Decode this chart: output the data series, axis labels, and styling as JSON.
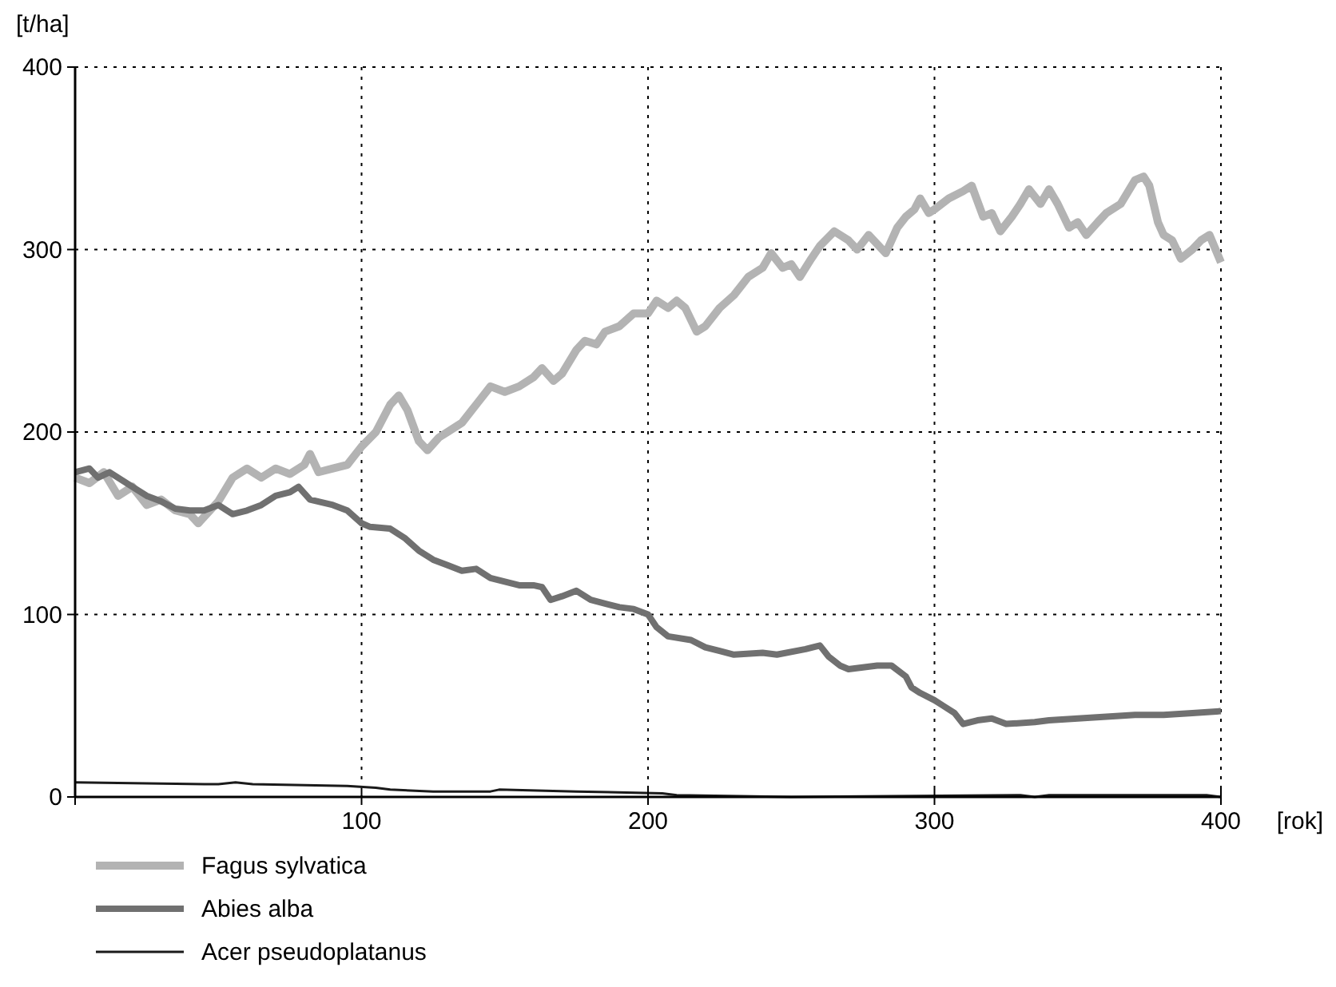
{
  "chart_data": {
    "type": "line",
    "xlabel": "[rok]",
    "ylabel": "[t/ha]",
    "xlim": [
      0,
      400
    ],
    "ylim": [
      0,
      400
    ],
    "xticks": [
      {
        "value": 0,
        "label": null
      },
      100,
      200,
      300,
      400
    ],
    "yticks": [
      0,
      100,
      200,
      300,
      400
    ],
    "grid": true,
    "legend": "bottom",
    "line_style": "solid",
    "marker": "none",
    "series": [
      {
        "name": "Fagus sylvatica",
        "color": "#b3b3b3",
        "x": [
          0,
          5,
          10,
          15,
          20,
          25,
          30,
          35,
          40,
          43,
          50,
          55,
          60,
          65,
          70,
          75,
          80,
          82,
          85,
          90,
          95,
          100,
          105,
          110,
          113,
          116,
          120,
          123,
          127,
          130,
          135,
          140,
          145,
          150,
          155,
          160,
          163,
          167,
          170,
          175,
          178,
          182,
          185,
          190,
          195,
          200,
          203,
          207,
          210,
          213,
          217,
          220,
          225,
          230,
          235,
          240,
          243,
          247,
          250,
          253,
          257,
          260,
          265,
          270,
          273,
          277,
          280,
          283,
          287,
          290,
          293,
          295,
          298,
          300,
          305,
          310,
          313,
          317,
          320,
          323,
          327,
          330,
          333,
          337,
          340,
          343,
          347,
          350,
          353,
          357,
          360,
          365,
          370,
          373,
          375,
          378,
          380,
          383,
          386,
          390,
          393,
          396,
          400
        ],
        "values": [
          175,
          172,
          178,
          165,
          170,
          160,
          163,
          157,
          155,
          150,
          162,
          175,
          180,
          175,
          180,
          177,
          182,
          188,
          178,
          180,
          182,
          192,
          200,
          215,
          220,
          212,
          195,
          190,
          197,
          200,
          205,
          215,
          225,
          222,
          225,
          230,
          235,
          228,
          232,
          245,
          250,
          248,
          255,
          258,
          265,
          265,
          272,
          268,
          272,
          268,
          255,
          258,
          268,
          275,
          285,
          290,
          298,
          290,
          292,
          285,
          295,
          302,
          310,
          305,
          300,
          308,
          303,
          298,
          312,
          318,
          322,
          328,
          320,
          322,
          328,
          332,
          335,
          318,
          320,
          310,
          318,
          325,
          333,
          325,
          333,
          325,
          312,
          315,
          308,
          315,
          320,
          325,
          338,
          340,
          335,
          315,
          308,
          305,
          295,
          300,
          305,
          308,
          293
        ]
      },
      {
        "name": "Abies alba",
        "color": "#707070",
        "x": [
          0,
          5,
          8,
          12,
          20,
          25,
          30,
          35,
          40,
          45,
          50,
          55,
          60,
          65,
          70,
          75,
          78,
          82,
          90,
          95,
          100,
          103,
          110,
          115,
          120,
          125,
          130,
          135,
          140,
          145,
          150,
          155,
          160,
          163,
          166,
          170,
          175,
          180,
          185,
          190,
          195,
          200,
          203,
          207,
          215,
          220,
          225,
          230,
          240,
          245,
          255,
          260,
          263,
          267,
          270,
          275,
          280,
          285,
          290,
          292,
          295,
          300,
          303,
          307,
          310,
          315,
          320,
          325,
          335,
          340,
          350,
          360,
          370,
          380,
          390,
          400
        ],
        "values": [
          178,
          180,
          175,
          178,
          170,
          165,
          162,
          158,
          157,
          157,
          160,
          155,
          157,
          160,
          165,
          167,
          170,
          163,
          160,
          157,
          150,
          148,
          147,
          142,
          135,
          130,
          127,
          124,
          125,
          120,
          118,
          116,
          116,
          115,
          108,
          110,
          113,
          108,
          106,
          104,
          103,
          100,
          93,
          88,
          86,
          82,
          80,
          78,
          79,
          78,
          81,
          83,
          77,
          72,
          70,
          71,
          72,
          72,
          66,
          60,
          57,
          53,
          50,
          46,
          40,
          42,
          43,
          40,
          41,
          42,
          43,
          44,
          45,
          45,
          46,
          47
        ]
      },
      {
        "name": "Acer pseudoplatanus",
        "color": "#1a1a1a",
        "x": [
          0,
          46,
          50,
          56,
          62,
          95,
          105,
          110,
          125,
          145,
          148,
          175,
          205,
          210,
          250,
          330,
          335,
          340,
          395,
          400
        ],
        "values": [
          8,
          7,
          7,
          8,
          7,
          6,
          5,
          4,
          3,
          3,
          4,
          3,
          2,
          1,
          0,
          1,
          0,
          1,
          1,
          0
        ]
      }
    ]
  }
}
